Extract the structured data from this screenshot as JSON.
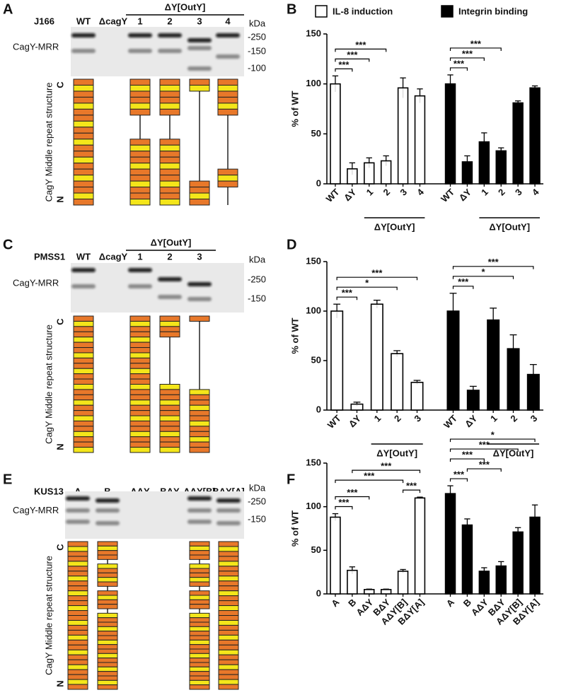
{
  "panels": [
    {
      "letter": "A",
      "strain": "J166",
      "lanes": [
        "WT",
        "ΔcagY",
        "1",
        "2",
        "3",
        "4"
      ],
      "group": "ΔY[OutY]",
      "kda": "kDa",
      "markers": [
        "-250",
        "-150",
        "-100"
      ],
      "band_label": "CagY-MRR",
      "structure_label": "CagY Middle repeat structure",
      "ends": [
        "C",
        "N"
      ]
    },
    {
      "letter": "C",
      "strain": "PMSS1",
      "lanes": [
        "WT",
        "ΔcagY",
        "1",
        "2",
        "3"
      ],
      "group": "ΔY[OutY]",
      "kda": "kDa",
      "markers": [
        "-250",
        "-150"
      ],
      "band_label": "CagY-MRR",
      "structure_label": "CagY Middle repeat structure",
      "ends": [
        "C",
        "N"
      ]
    },
    {
      "letter": "E",
      "strain": "KUS13",
      "lanes": [
        "A",
        "B",
        "AΔY",
        "BΔY",
        "AΔY[B]",
        "BΔY[A]"
      ],
      "kda": "kDa",
      "markers": [
        "-250",
        "-150"
      ],
      "band_label": "CagY-MRR",
      "structure_label": "CagY Middle repeat structure",
      "ends": [
        "C",
        "N"
      ]
    }
  ],
  "chart_data": [
    {
      "panel": "B",
      "type": "bar",
      "legend": true,
      "ylabel": "% of WT",
      "ylim": [
        0,
        150
      ],
      "yticks": [
        0,
        50,
        100,
        150
      ],
      "categories": [
        "WT",
        "ΔY",
        "1",
        "2",
        "3",
        "4",
        "WT",
        "ΔY",
        "1",
        "2",
        "3",
        "4"
      ],
      "series": [
        {
          "name": "IL-8 induction",
          "color": "#ffffff",
          "values": [
            100,
            15,
            21,
            23,
            96,
            88,
            null,
            null,
            null,
            null,
            null,
            null
          ],
          "errors": [
            8,
            6,
            5,
            5,
            10,
            7,
            null,
            null,
            null,
            null,
            null,
            null
          ]
        },
        {
          "name": "Integrin binding",
          "color": "#000000",
          "values": [
            null,
            null,
            null,
            null,
            null,
            null,
            100,
            22,
            42,
            33,
            81,
            96
          ],
          "errors": [
            null,
            null,
            null,
            null,
            null,
            null,
            9,
            6,
            9,
            3,
            2,
            2
          ]
        }
      ],
      "groups": [
        {
          "text": "ΔY[OutY]",
          "from": 2,
          "to": 5
        },
        {
          "text": "ΔY[OutY]",
          "from": 8,
          "to": 11
        }
      ],
      "significance": [
        {
          "text": "***",
          "from": 0,
          "to": 1
        },
        {
          "text": "***",
          "from": 0,
          "to": 2
        },
        {
          "text": "***",
          "from": 0,
          "to": 3
        },
        {
          "text": "***",
          "from": 6,
          "to": 7
        },
        {
          "text": "***",
          "from": 6,
          "to": 8
        },
        {
          "text": "***",
          "from": 6,
          "to": 9
        }
      ]
    },
    {
      "panel": "D",
      "type": "bar",
      "ylabel": "% of WT",
      "ylim": [
        0,
        150
      ],
      "yticks": [
        0,
        50,
        100,
        150
      ],
      "categories": [
        "WT",
        "ΔY",
        "1",
        "2",
        "3",
        "WT",
        "ΔY",
        "1",
        "2",
        "3"
      ],
      "series": [
        {
          "color": "#ffffff",
          "values": [
            100,
            6,
            107,
            57,
            28,
            null,
            null,
            null,
            null,
            null
          ],
          "errors": [
            7,
            2,
            4,
            3,
            2,
            null,
            null,
            null,
            null,
            null
          ]
        },
        {
          "color": "#000000",
          "values": [
            null,
            null,
            null,
            null,
            null,
            100,
            20,
            91,
            62,
            36
          ],
          "errors": [
            null,
            null,
            null,
            null,
            null,
            18,
            4,
            12,
            14,
            10
          ]
        }
      ],
      "groups": [
        {
          "text": "ΔY[OutY]",
          "from": 2,
          "to": 4
        },
        {
          "text": "ΔY[OutY]",
          "from": 7,
          "to": 9
        }
      ],
      "significance": [
        {
          "text": "***",
          "from": 0,
          "to": 1
        },
        {
          "text": "*",
          "from": 0,
          "to": 3
        },
        {
          "text": "***",
          "from": 0,
          "to": 4
        },
        {
          "text": "***",
          "from": 5,
          "to": 6
        },
        {
          "text": "*",
          "from": 5,
          "to": 8
        },
        {
          "text": "***",
          "from": 5,
          "to": 9
        }
      ]
    },
    {
      "panel": "F",
      "type": "bar",
      "ylabel": "% of WT",
      "ylim": [
        0,
        150
      ],
      "yticks": [
        0,
        50,
        100,
        150
      ],
      "categories": [
        "A",
        "B",
        "AΔY",
        "BΔY",
        "AΔY[B]",
        "BΔY[A]",
        "A",
        "B",
        "AΔY",
        "BΔY",
        "AΔY[B]",
        "BΔY[A]"
      ],
      "series": [
        {
          "color": "#ffffff",
          "values": [
            88,
            27,
            5,
            5,
            26,
            110,
            null,
            null,
            null,
            null,
            null,
            null
          ],
          "errors": [
            4,
            4,
            0.5,
            0.5,
            2,
            1,
            null,
            null,
            null,
            null,
            null,
            null
          ]
        },
        {
          "color": "#000000",
          "values": [
            null,
            null,
            null,
            null,
            null,
            null,
            115,
            79,
            26,
            32,
            71,
            88
          ],
          "errors": [
            null,
            null,
            null,
            null,
            null,
            null,
            9,
            7,
            4,
            5,
            5,
            14
          ]
        }
      ],
      "significance": [
        {
          "text": "***",
          "from": 0,
          "to": 1
        },
        {
          "text": "***",
          "from": 0,
          "to": 2
        },
        {
          "text": "***",
          "from": 4,
          "to": 5
        },
        {
          "text": "***",
          "from": 0,
          "to": 4
        },
        {
          "text": "***",
          "from": 1,
          "to": 5
        },
        {
          "text": "***",
          "from": 6,
          "to": 7
        },
        {
          "text": "***",
          "from": 7,
          "to": 9
        },
        {
          "text": "***",
          "from": 6,
          "to": 8
        },
        {
          "text": "***",
          "from": 6,
          "to": 10
        },
        {
          "text": "*",
          "from": 6,
          "to": 11
        }
      ]
    }
  ]
}
